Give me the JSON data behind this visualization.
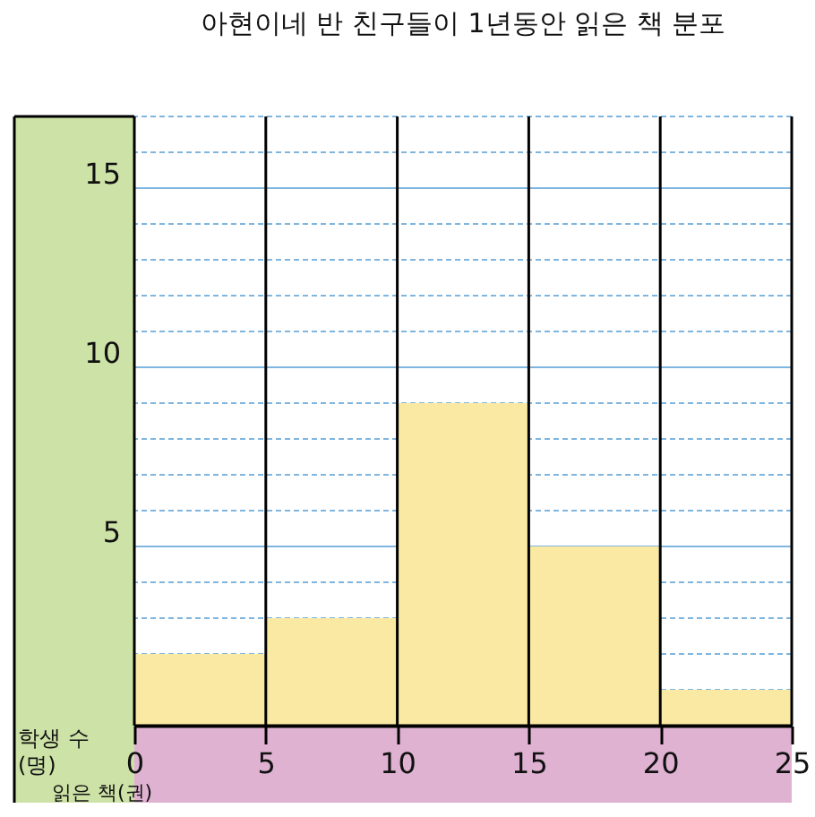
{
  "chart_data": {
    "type": "histogram",
    "title": "아현이네 반 친구들이 1년동안 읽은 책 분포",
    "xlabel": "읽은 책(권)",
    "ylabel": "학생 수 (명)",
    "bins": [
      0,
      5,
      10,
      15,
      20,
      25
    ],
    "values": [
      2,
      3,
      9,
      5,
      1
    ],
    "color": "#f9e9a3",
    "xlim": [
      0,
      25
    ],
    "xticks": [
      0,
      5,
      10,
      15,
      20,
      25
    ],
    "ylim": [
      0,
      17
    ],
    "yticks": [
      {
        "value": 1,
        "label": null
      },
      {
        "value": 2,
        "label": null
      },
      {
        "value": 3,
        "label": null
      },
      {
        "value": 4,
        "label": null
      },
      5,
      {
        "value": 6,
        "label": null
      },
      {
        "value": 7,
        "label": null
      },
      {
        "value": 8,
        "label": null
      },
      {
        "value": 9,
        "label": null
      },
      10,
      {
        "value": 11,
        "label": null
      },
      {
        "value": 12,
        "label": null
      },
      {
        "value": 13,
        "label": null
      },
      {
        "value": 14,
        "label": null
      },
      15,
      {
        "value": 16,
        "label": null
      },
      {
        "value": 17,
        "label": null
      }
    ],
    "grid": true,
    "legend": false
  }
}
